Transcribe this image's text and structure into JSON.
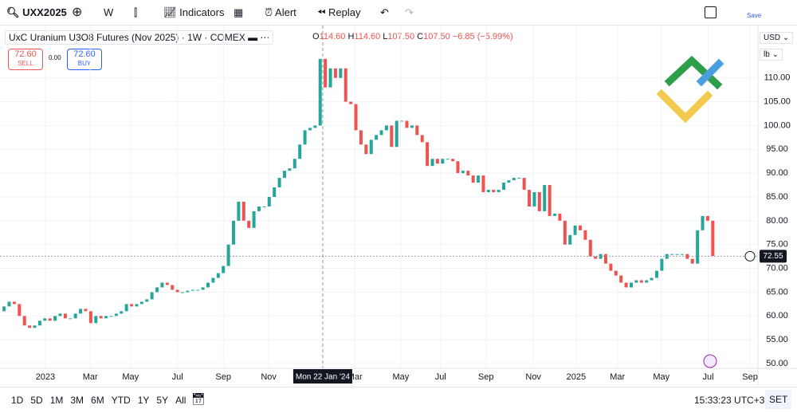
{
  "toolbar": {
    "symbol": "UXX2025",
    "interval": "W",
    "indicators": "Indicators",
    "alert": "Alert",
    "replay": "Replay",
    "save": "Save"
  },
  "legend": {
    "title": "UxC Uranium U3O8 Futures (Nov 2025) · 1W · COMEX",
    "o_label": "O",
    "o": "114.60",
    "h_label": "H",
    "h": "114.60",
    "l_label": "L",
    "l": "107.50",
    "c_label": "C",
    "c": "107.50",
    "change": "−6.85 (−5.99%)"
  },
  "trade": {
    "sell_price": "72.60",
    "sell": "SELL",
    "spread": "0.00",
    "buy_price": "72.60",
    "buy": "BUY"
  },
  "scale": {
    "currency": "USD",
    "unit": "lb"
  },
  "chart_data": {
    "type": "candlestick",
    "up_color": "#26a69a",
    "down_color": "#ef5350",
    "open": [
      61,
      62,
      63,
      62.5,
      60,
      58,
      57.5,
      58,
      59,
      59.5,
      59,
      60,
      60.5,
      59.5,
      59.5,
      60.5,
      61.5,
      61,
      58.5,
      60,
      59.5,
      60,
      60,
      60.5,
      61,
      62.5,
      62,
      62.5,
      63,
      63.5,
      65,
      66,
      67,
      66.5,
      65.5,
      65,
      65,
      65.3,
      65.5,
      65.5,
      66,
      67,
      68,
      69,
      70.5,
      75,
      80,
      84,
      80,
      78.5,
      82,
      83,
      83,
      85,
      87,
      89,
      90.5,
      91,
      93,
      96,
      99,
      99.5,
      100,
      114,
      108,
      112,
      110,
      112,
      105,
      104.5,
      99,
      96,
      94,
      97,
      98,
      99,
      100,
      95.5,
      101,
      101,
      99.5,
      100,
      98,
      96.5,
      91.5,
      93,
      92,
      93,
      93,
      92.5,
      90,
      90.5,
      89.5,
      88,
      89.5,
      86,
      86.5,
      86,
      86.5,
      88,
      88.5,
      89,
      89,
      86.5,
      83,
      86,
      82,
      87.5,
      81,
      81.5,
      80,
      75,
      77,
      79,
      78,
      76,
      72.5,
      72,
      73,
      71,
      69.5,
      68.5,
      67,
      66,
      67,
      67.5,
      67,
      67.5,
      68,
      69.5,
      72,
      73,
      73,
      73,
      73,
      72,
      71,
      78,
      81,
      80
    ],
    "close": [
      62,
      63,
      62.5,
      60,
      58,
      57.5,
      58,
      59,
      59.5,
      59,
      60,
      60.5,
      59.5,
      59.5,
      60.5,
      61.5,
      61,
      58.5,
      60,
      59.5,
      60,
      60,
      60.5,
      61,
      62.5,
      62,
      62.5,
      63,
      63.5,
      65,
      66,
      67,
      66.5,
      65.5,
      65,
      65,
      65.3,
      65.5,
      65.5,
      66,
      67,
      68,
      69,
      70.5,
      75,
      80,
      84,
      80,
      78.5,
      82,
      83,
      83,
      85,
      87,
      89,
      90.5,
      91,
      93,
      96,
      99,
      99.5,
      100,
      114,
      108,
      112,
      110,
      112,
      105,
      104.5,
      99,
      96,
      94,
      97,
      98,
      99,
      100,
      95.5,
      101,
      101,
      99.5,
      100,
      98,
      96.5,
      91.5,
      93,
      92,
      93,
      93,
      92.5,
      90,
      90.5,
      89.5,
      88,
      89.5,
      86,
      86.5,
      86,
      86.5,
      88,
      88.5,
      89,
      89,
      86.5,
      83,
      86,
      82,
      87.5,
      81,
      81.5,
      80,
      75,
      77,
      79,
      78,
      76,
      72.5,
      72,
      73,
      71,
      69.5,
      68.5,
      67,
      66,
      67,
      67.5,
      67,
      67.5,
      68,
      69.5,
      72,
      73,
      73,
      73,
      73,
      72,
      71,
      78,
      81,
      80,
      72.6
    ],
    "xlim": [
      -0.8,
      147.7
    ],
    "xticks": [
      {
        "value": 8.1,
        "label": "2023"
      },
      {
        "value": 16.9,
        "label": "Mar"
      },
      {
        "value": 24.8,
        "label": "May"
      },
      {
        "value": 34,
        "label": "Jul"
      },
      {
        "value": 43,
        "label": "Sep"
      },
      {
        "value": 51.9,
        "label": "Nov"
      },
      {
        "value": 68.8,
        "label": "Mar"
      },
      {
        "value": 77.8,
        "label": "May"
      },
      {
        "value": 85.6,
        "label": "Jul"
      },
      {
        "value": 94.5,
        "label": "Sep"
      },
      {
        "value": 103.8,
        "label": "Nov"
      },
      {
        "value": 112.2,
        "label": "2025"
      },
      {
        "value": 120.3,
        "label": "Mar"
      },
      {
        "value": 128.9,
        "label": "May"
      },
      {
        "value": 138.1,
        "label": "Jul"
      },
      {
        "value": 146.3,
        "label": "Sep"
      }
    ],
    "ylim": [
      49,
      120.5
    ],
    "yticks": [
      {
        "value": 50,
        "label": "50.00"
      },
      {
        "value": 55,
        "label": "55.00"
      },
      {
        "value": 60,
        "label": "60.00"
      },
      {
        "value": 65,
        "label": "65.00"
      },
      {
        "value": 70,
        "label": "70.00"
      },
      {
        "value": 75,
        "label": "75.00"
      },
      {
        "value": 80,
        "label": "80.00"
      },
      {
        "value": 85,
        "label": "85.00"
      },
      {
        "value": 90,
        "label": "90.00"
      },
      {
        "value": 95,
        "label": "95.00"
      },
      {
        "value": 100,
        "label": "100.00"
      },
      {
        "value": 105,
        "label": "105.00"
      },
      {
        "value": 110,
        "label": "110.00"
      }
    ],
    "grid": true,
    "crosshair": {
      "x": 62.5,
      "label": "Mon 22 Jan '24"
    },
    "last_price": {
      "value": 72.55,
      "label": "72.55"
    }
  },
  "bottom_bar": {
    "ranges": [
      "1D",
      "5D",
      "1M",
      "3M",
      "6M",
      "YTD",
      "1Y",
      "5Y",
      "All"
    ],
    "time": "15:33:23 UTC+3",
    "session": "SET"
  }
}
